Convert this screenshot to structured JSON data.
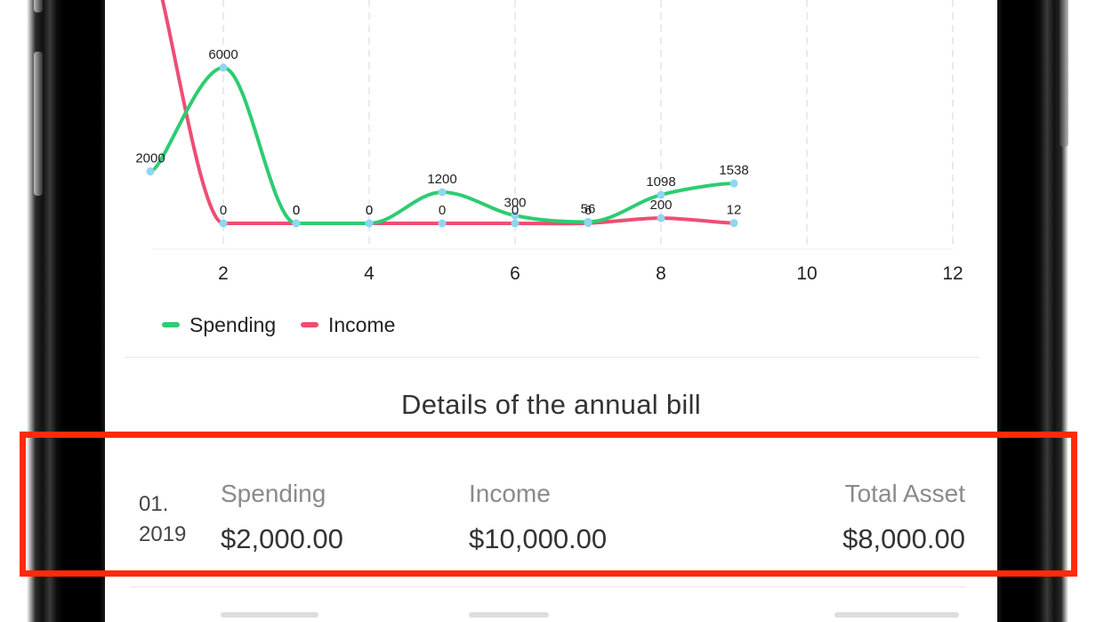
{
  "chart_data": {
    "type": "line",
    "title": "",
    "xlabel": "",
    "ylabel": "",
    "x": [
      1,
      2,
      3,
      4,
      5,
      6,
      7,
      8,
      9
    ],
    "xlim": [
      1,
      12
    ],
    "x_ticks": [
      2,
      4,
      6,
      8,
      10,
      12
    ],
    "ylim": [
      0,
      7500
    ],
    "grid": "vertical dashed",
    "legend": "bottom-left",
    "series": [
      {
        "name": "Spending",
        "color": "#2ecc71",
        "values": [
          2000,
          6000,
          0,
          0,
          1200,
          300,
          56,
          1098,
          1538
        ],
        "labels": [
          "2000",
          "6000",
          "0",
          "0",
          "1200",
          "300",
          "56",
          "1098",
          "1538"
        ]
      },
      {
        "name": "Income",
        "color": "#ef4d73",
        "values": [
          10000,
          0,
          0,
          0,
          0,
          0,
          6,
          200,
          12
        ],
        "labels": [
          "",
          "0",
          "0",
          "0",
          "0",
          "0",
          "6",
          "200",
          "12"
        ]
      }
    ],
    "point_color": "#8fd6f0"
  },
  "section": {
    "title": "Details of the annual bill"
  },
  "bill": {
    "date_line1": "01.",
    "date_line2": "2019",
    "spending_label": "Spending",
    "spending_value": "$2,000.00",
    "income_label": "Income",
    "income_value": "$10,000.00",
    "total_label": "Total Asset",
    "total_value": "$8,000.00"
  },
  "highlight_color": "#ff2a0a"
}
